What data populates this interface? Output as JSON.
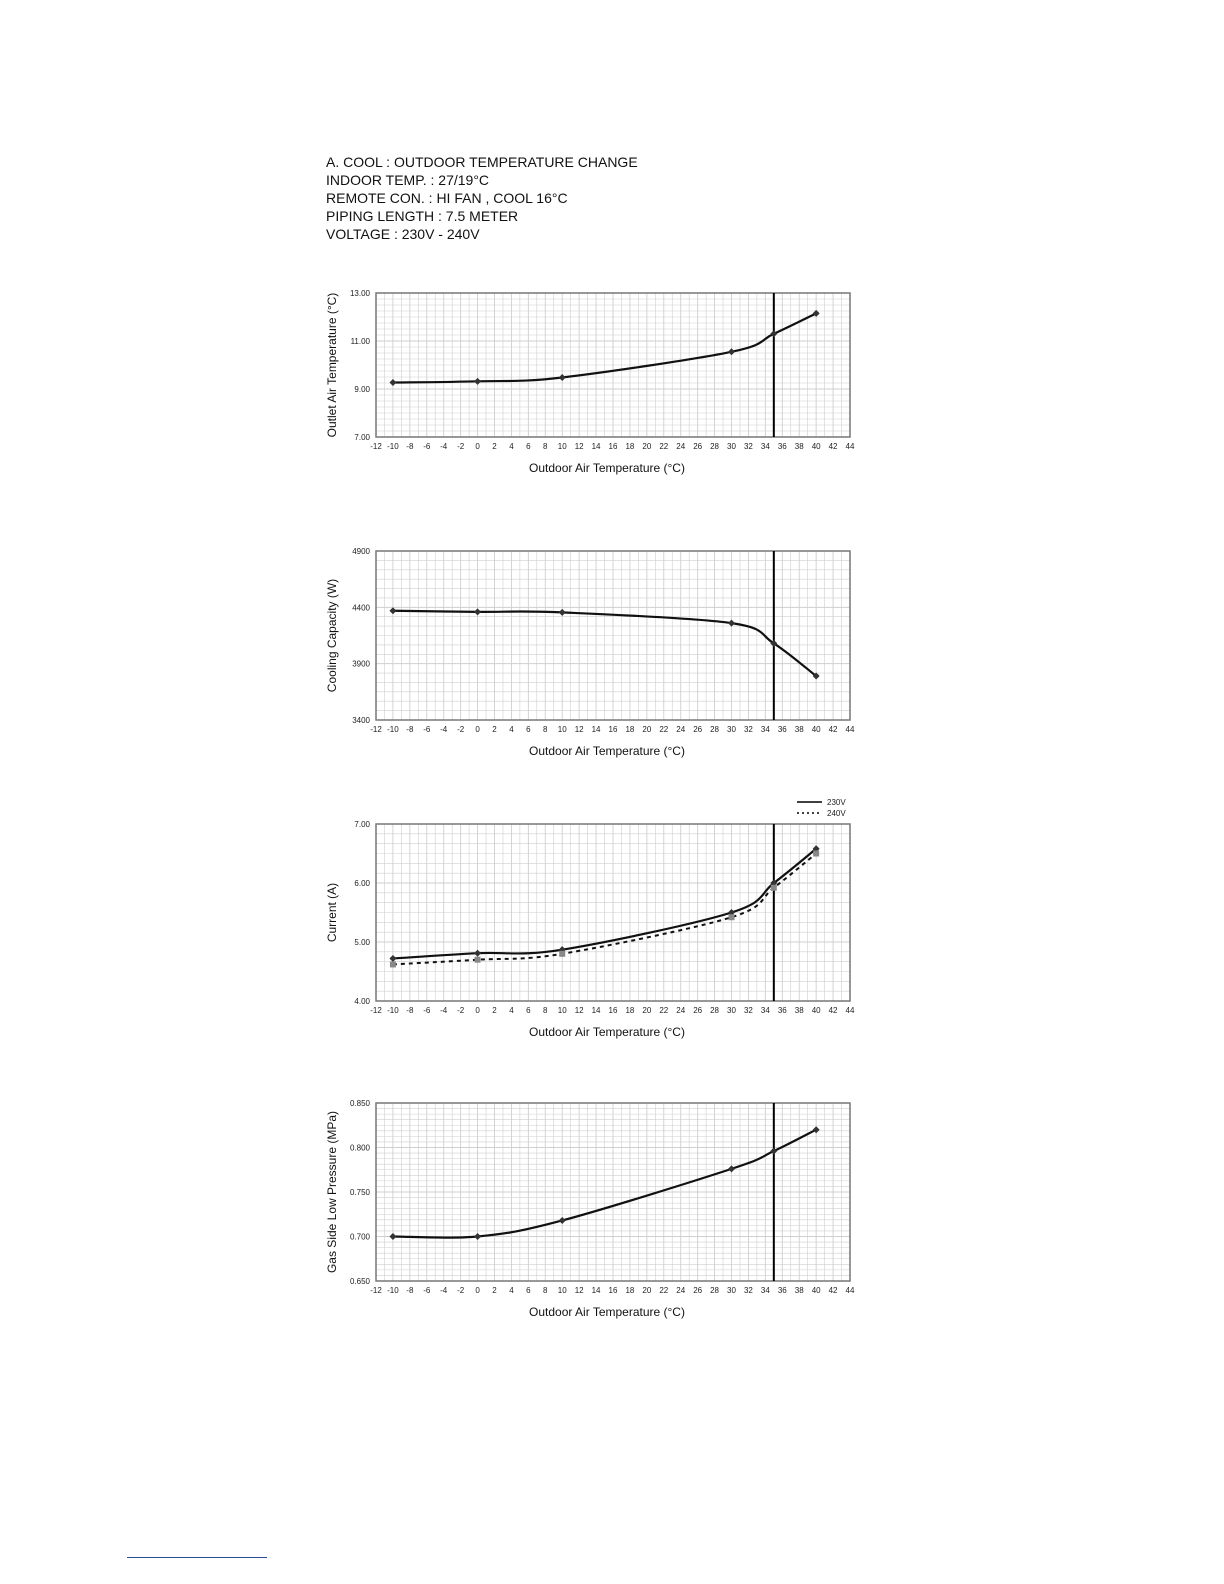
{
  "header": {
    "lines": [
      "A. COOL : OUTDOOR TEMPERATURE CHANGE",
      "INDOOR TEMP. : 27/19°C",
      "REMOTE CON. : HI FAN , COOL 16°C",
      "PIPING LENGTH : 7.5 METER",
      "VOLTAGE : 230V - 240V"
    ]
  },
  "chart_data": [
    {
      "type": "line",
      "xlabel": "Outdoor Air Temperature (°C)",
      "ylabel": "Outlet Air Temperature (°C)",
      "xlim": [
        -12,
        44
      ],
      "ylim": [
        7,
        13
      ],
      "x_ticks": [
        "-12",
        "-10",
        "-8",
        "-6",
        "-4",
        "-2",
        "0",
        "2",
        "4",
        "6",
        "8",
        "10",
        "12",
        "14",
        "16",
        "18",
        "20",
        "22",
        "24",
        "26",
        "28",
        "30",
        "32",
        "34",
        "36",
        "38",
        "40",
        "42",
        "44"
      ],
      "y_ticks": [
        "7.00",
        "9.00",
        "11.00",
        "13.00"
      ],
      "reference_line_x": 35,
      "grid": true,
      "series": [
        {
          "x": [
            -10,
            0,
            10,
            30,
            35,
            40
          ],
          "values": [
            9.27,
            9.32,
            9.48,
            10.55,
            11.3,
            12.15
          ],
          "style": "solid",
          "marker": "diamond"
        }
      ]
    },
    {
      "type": "line",
      "xlabel": "Outdoor Air Temperature (°C)",
      "ylabel": "Cooling Capacity (W)",
      "xlim": [
        -12,
        44
      ],
      "ylim": [
        3400,
        4900
      ],
      "x_ticks": [
        "-12",
        "-10",
        "-8",
        "-6",
        "-4",
        "-2",
        "0",
        "2",
        "4",
        "6",
        "8",
        "10",
        "12",
        "14",
        "16",
        "18",
        "20",
        "22",
        "24",
        "26",
        "28",
        "30",
        "32",
        "34",
        "36",
        "38",
        "40",
        "42",
        "44"
      ],
      "y_ticks": [
        "3400",
        "3900",
        "4400",
        "4900"
      ],
      "reference_line_x": 35,
      "grid": true,
      "series": [
        {
          "x": [
            -10,
            0,
            10,
            30,
            35,
            40
          ],
          "values": [
            4370,
            4360,
            4355,
            4260,
            4080,
            3790
          ],
          "style": "solid",
          "marker": "diamond"
        }
      ]
    },
    {
      "type": "line",
      "xlabel": "Outdoor Air Temperature (°C)",
      "ylabel": "Current (A)",
      "xlim": [
        -12,
        44
      ],
      "ylim": [
        4,
        7
      ],
      "x_ticks": [
        "-12",
        "-10",
        "-8",
        "-6",
        "-4",
        "-2",
        "0",
        "2",
        "4",
        "6",
        "8",
        "10",
        "12",
        "14",
        "16",
        "18",
        "20",
        "22",
        "24",
        "26",
        "28",
        "30",
        "32",
        "34",
        "36",
        "38",
        "40",
        "42",
        "44"
      ],
      "y_ticks": [
        "4.00",
        "5.00",
        "6.00",
        "7.00"
      ],
      "reference_line_x": 35,
      "grid": true,
      "legend": "top-right",
      "series": [
        {
          "name": "230V",
          "x": [
            -10,
            0,
            10,
            30,
            35,
            40
          ],
          "values": [
            4.72,
            4.81,
            4.87,
            5.5,
            6.0,
            6.58
          ],
          "style": "solid",
          "marker": "diamond"
        },
        {
          "name": "240V",
          "x": [
            -10,
            0,
            10,
            30,
            35,
            40
          ],
          "values": [
            4.62,
            4.7,
            4.8,
            5.42,
            5.92,
            6.5
          ],
          "style": "dotted",
          "marker": "square"
        }
      ]
    },
    {
      "type": "line",
      "xlabel": "Outdoor Air Temperature (°C)",
      "ylabel": "Gas Side Low Pressure (MPa)",
      "xlim": [
        -12,
        44
      ],
      "ylim": [
        0.65,
        0.85
      ],
      "x_ticks": [
        "-12",
        "-10",
        "-8",
        "-6",
        "-4",
        "-2",
        "0",
        "2",
        "4",
        "6",
        "8",
        "10",
        "12",
        "14",
        "16",
        "18",
        "20",
        "22",
        "24",
        "26",
        "28",
        "30",
        "32",
        "34",
        "36",
        "38",
        "40",
        "42",
        "44"
      ],
      "y_ticks": [
        "0.650",
        "0.700",
        "0.750",
        "0.800",
        "0.850"
      ],
      "reference_line_x": 35,
      "grid": true,
      "series": [
        {
          "x": [
            -10,
            0,
            10,
            30,
            35,
            40
          ],
          "values": [
            0.7,
            0.7,
            0.718,
            0.776,
            0.796,
            0.82
          ],
          "style": "solid",
          "marker": "diamond"
        }
      ]
    }
  ],
  "colors": {
    "line": "#111111",
    "grid": "#cfcfcf",
    "frame": "#777777",
    "marker_230": "#333333",
    "marker_240": "#888888",
    "footnote_rule": "#2a4c9a"
  }
}
